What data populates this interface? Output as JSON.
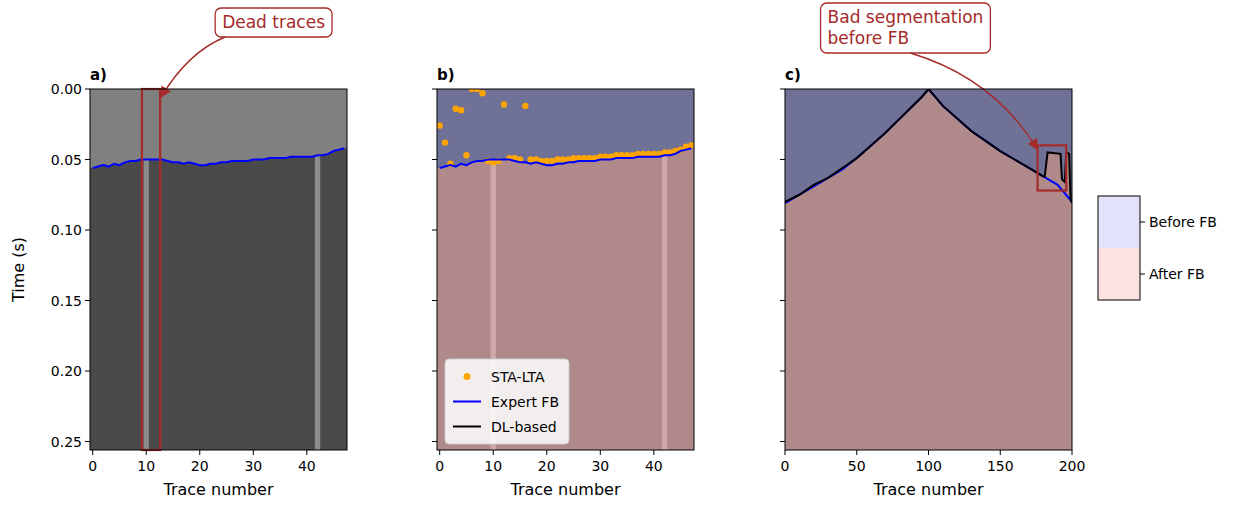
{
  "chart_data": [
    {
      "type": "line",
      "title": "a)",
      "x_label": "Trace number",
      "y_label": "Time (s)",
      "xlim": [
        -0.5,
        47.5
      ],
      "xticks": [
        0,
        10,
        20,
        30,
        40
      ],
      "ylim": [
        0,
        0.256
      ],
      "yticks": [
        {
          "value": 0,
          "label": "0.00"
        },
        0.05,
        {
          "value": 0.1,
          "label": "0.10"
        },
        0.15,
        {
          "value": 0.2,
          "label": "0.20"
        },
        0.25
      ],
      "dead_traces": [
        10,
        42
      ],
      "annotations": [
        {
          "text": "Dead traces",
          "x_range": [
            9.2,
            12.6
          ]
        }
      ],
      "series": [
        {
          "name": "Expert FB",
          "color": "#0000ff",
          "line_style": "solid",
          "x": [
            0,
            1,
            2,
            3,
            4,
            5,
            6,
            7,
            8,
            9,
            10,
            11,
            12,
            13,
            14,
            15,
            16,
            17,
            18,
            19,
            20,
            21,
            22,
            23,
            24,
            25,
            26,
            27,
            28,
            29,
            30,
            31,
            32,
            33,
            34,
            35,
            36,
            37,
            38,
            39,
            40,
            41,
            42,
            43,
            44,
            45,
            46,
            47
          ],
          "values": [
            0.056,
            0.055,
            0.054,
            0.055,
            0.053,
            0.054,
            0.052,
            0.051,
            0.051,
            0.05,
            0.05,
            0.05,
            0.05,
            0.05,
            0.051,
            0.052,
            0.052,
            0.053,
            0.052,
            0.053,
            0.054,
            0.054,
            0.053,
            0.053,
            0.052,
            0.052,
            0.051,
            0.051,
            0.051,
            0.051,
            0.05,
            0.05,
            0.05,
            0.049,
            0.049,
            0.049,
            0.049,
            0.048,
            0.048,
            0.048,
            0.048,
            0.048,
            0.047,
            0.047,
            0.046,
            0.044,
            0.043,
            0.042
          ]
        }
      ]
    },
    {
      "type": "segmentation",
      "title": "b)",
      "x_label": "Trace number",
      "xlim": [
        -0.5,
        47.5
      ],
      "xticks": [
        0,
        10,
        20,
        30,
        40
      ],
      "ylim": [
        0,
        0.256
      ],
      "yticks": [
        {
          "value": 0,
          "label": "0.00"
        },
        0.05,
        {
          "value": 0.1,
          "label": "0.10"
        },
        0.15,
        {
          "value": 0.2,
          "label": "0.20"
        },
        0.25
      ],
      "tick_labels": "x",
      "legend": "lower left",
      "dead_traces": [
        10,
        42
      ],
      "series": [
        {
          "name": "STA-LTA",
          "color": "#ffa500",
          "marker": "circle",
          "x": [
            0,
            1,
            2,
            3,
            4,
            5,
            6,
            7,
            8,
            9,
            10,
            11,
            12,
            13,
            14,
            15,
            16,
            17,
            18,
            19,
            20,
            21,
            22,
            23,
            24,
            25,
            26,
            27,
            28,
            29,
            30,
            31,
            32,
            33,
            34,
            35,
            36,
            37,
            38,
            39,
            40,
            41,
            42,
            43,
            44,
            45,
            46,
            47
          ],
          "values": [
            0.026,
            0.038,
            0.053,
            0.014,
            0.015,
            0.047,
            0.0,
            0.0,
            0.003,
            0.051,
            0.052,
            0.051,
            0.011,
            0.049,
            0.049,
            0.05,
            0.012,
            0.05,
            0.05,
            0.051,
            0.051,
            0.051,
            0.05,
            0.05,
            0.05,
            0.049,
            0.049,
            0.049,
            0.049,
            0.049,
            0.048,
            0.048,
            0.048,
            0.047,
            0.047,
            0.047,
            0.047,
            0.046,
            0.046,
            0.046,
            0.046,
            0.046,
            0.045,
            0.045,
            0.044,
            0.043,
            0.041,
            0.04
          ]
        },
        {
          "name": "Expert FB",
          "color": "#0000ff",
          "line_style": "solid",
          "x": [
            0,
            1,
            2,
            3,
            4,
            5,
            6,
            7,
            8,
            9,
            10,
            11,
            12,
            13,
            14,
            15,
            16,
            17,
            18,
            19,
            20,
            21,
            22,
            23,
            24,
            25,
            26,
            27,
            28,
            29,
            30,
            31,
            32,
            33,
            34,
            35,
            36,
            37,
            38,
            39,
            40,
            41,
            42,
            43,
            44,
            45,
            46,
            47
          ],
          "values": [
            0.056,
            0.055,
            0.054,
            0.055,
            0.053,
            0.054,
            0.052,
            0.051,
            0.051,
            0.05,
            0.05,
            0.05,
            0.05,
            0.05,
            0.051,
            0.052,
            0.052,
            0.053,
            0.052,
            0.053,
            0.054,
            0.054,
            0.053,
            0.053,
            0.052,
            0.052,
            0.051,
            0.051,
            0.051,
            0.051,
            0.05,
            0.05,
            0.05,
            0.049,
            0.049,
            0.049,
            0.049,
            0.048,
            0.048,
            0.048,
            0.048,
            0.048,
            0.047,
            0.047,
            0.046,
            0.044,
            0.043,
            0.042
          ]
        },
        {
          "name": "DL-based",
          "color": "#000000",
          "line_style": "solid",
          "x": [],
          "values": []
        }
      ]
    },
    {
      "type": "segmentation",
      "title": "c)",
      "x_label": "Trace number",
      "xlim": [
        0,
        200
      ],
      "xticks": [
        0,
        50,
        100,
        150,
        200
      ],
      "ylim": [
        0,
        0.256
      ],
      "yticks": [
        {
          "value": 0,
          "label": "0.00"
        },
        0.05,
        {
          "value": 0.1,
          "label": "0.10"
        },
        0.15,
        {
          "value": 0.2,
          "label": "0.20"
        },
        0.25
      ],
      "tick_labels": "x",
      "annotations": [
        {
          "text": "Bad segmentation before FB",
          "x_range": [
            176,
            196
          ],
          "y_range": [
            0.04,
            0.072
          ]
        }
      ],
      "series": [
        {
          "name": "Expert FB",
          "color": "#0000ff",
          "line_style": "solid",
          "x": [
            0,
            10,
            20,
            30,
            40,
            50,
            60,
            70,
            80,
            90,
            95,
            100,
            105,
            110,
            120,
            130,
            140,
            150,
            160,
            170,
            180,
            190,
            200
          ],
          "values": [
            0.081,
            0.075,
            0.069,
            0.063,
            0.057,
            0.049,
            0.04,
            0.031,
            0.021,
            0.011,
            0.006,
            0.0,
            0.006,
            0.012,
            0.021,
            0.03,
            0.037,
            0.044,
            0.05,
            0.056,
            0.062,
            0.068,
            0.08
          ]
        },
        {
          "name": "DL-based",
          "color": "#000000",
          "line_style": "solid",
          "x": [
            0,
            10,
            20,
            30,
            40,
            50,
            60,
            70,
            80,
            90,
            95,
            100,
            105,
            110,
            120,
            130,
            140,
            150,
            160,
            170,
            180,
            181,
            183,
            192,
            193,
            195,
            196,
            198,
            199,
            200
          ],
          "values": [
            0.08,
            0.075,
            0.068,
            0.063,
            0.056,
            0.049,
            0.04,
            0.031,
            0.021,
            0.011,
            0.006,
            0.0,
            0.006,
            0.012,
            0.021,
            0.03,
            0.037,
            0.044,
            0.05,
            0.056,
            0.062,
            0.062,
            0.045,
            0.046,
            0.064,
            0.066,
            0.045,
            0.046,
            0.078,
            0.081
          ]
        }
      ]
    },
    {
      "type": "colorbar",
      "categories": [
        "Before FB",
        "After FB"
      ],
      "colors": [
        "#e2e2fb",
        "#fde2e2"
      ]
    }
  ]
}
